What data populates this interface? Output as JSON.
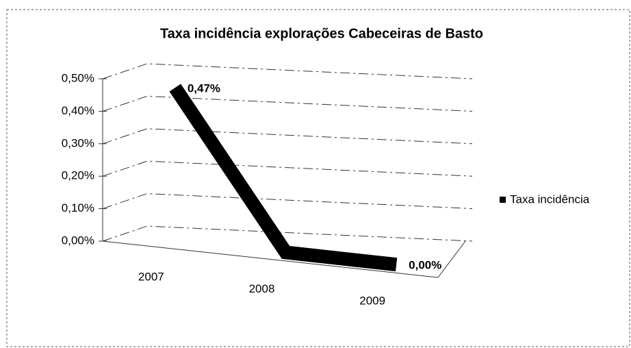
{
  "chart_data": {
    "type": "line",
    "title": "Taxa incidência explorações Cabeceiras de Basto",
    "categories": [
      "2007",
      "2008",
      "2009"
    ],
    "series": [
      {
        "name": "Taxa incidência",
        "color": "#000000",
        "values": [
          0.47,
          0,
          0
        ],
        "value_labels": [
          "0,47%",
          null,
          "0,00%"
        ]
      }
    ],
    "ylim": [
      0,
      0.5
    ],
    "yticks": [
      {
        "value": 0,
        "label": "0,00%"
      },
      {
        "value": 0.1,
        "label": "0,10%"
      },
      {
        "value": 0.2,
        "label": "0,20%"
      },
      {
        "value": 0.3,
        "label": "0,30%"
      },
      {
        "value": 0.4,
        "label": "0,40%"
      },
      {
        "value": 0.5,
        "label": "0,50%"
      }
    ],
    "grid": true,
    "legend": "right"
  }
}
